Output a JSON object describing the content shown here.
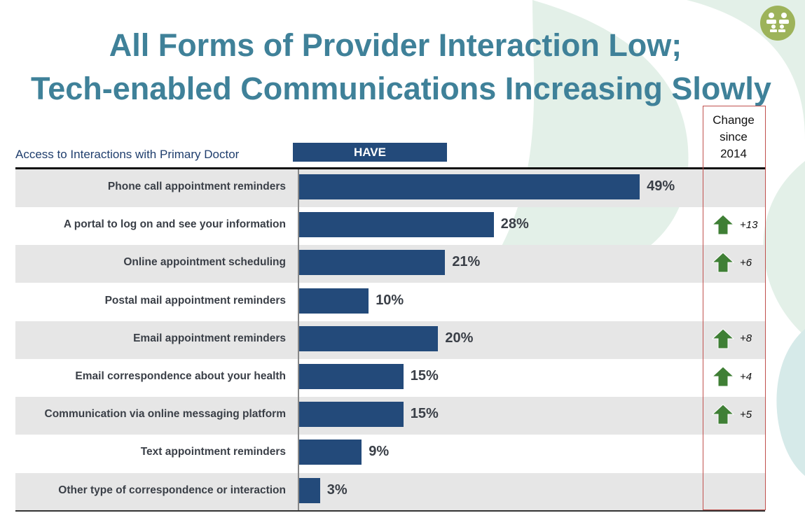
{
  "title_line1": "All Forms of Provider Interaction Low;",
  "title_line2": "Tech-enabled Communications Increasing Slowly",
  "logo_icon": "people-group-icon",
  "colors": {
    "title": "#3f8199",
    "bar": "#234a7a",
    "arrow": "#3f7f35",
    "change_box": "#c0504d",
    "logo": "#9db35a"
  },
  "chart_data": {
    "type": "bar",
    "orientation": "horizontal",
    "subtitle": "Access to Interactions with Primary Doctor",
    "series_header": "HAVE",
    "change_header": "Change since 2014",
    "change_header_lines": [
      "Change",
      "since",
      "2014"
    ],
    "categories": [
      "Phone call appointment reminders",
      "A portal to log on and see your information",
      "Online appointment scheduling",
      "Postal mail appointment reminders",
      "Email appointment reminders",
      "Email correspondence about your health",
      "Communication via  online  messaging platform",
      "Text appointment reminders",
      "Other type of correspondence or interaction"
    ],
    "values": [
      49,
      28,
      21,
      10,
      20,
      15,
      15,
      9,
      3
    ],
    "value_labels": [
      "49%",
      "28%",
      "21%",
      "10%",
      "20%",
      "15%",
      "15%",
      "9%",
      "3%"
    ],
    "change": [
      "",
      "+13",
      "+6",
      "",
      "+8",
      "+4",
      "+5",
      "",
      ""
    ],
    "change_icon": "arrow-up-icon",
    "unit": "%"
  }
}
